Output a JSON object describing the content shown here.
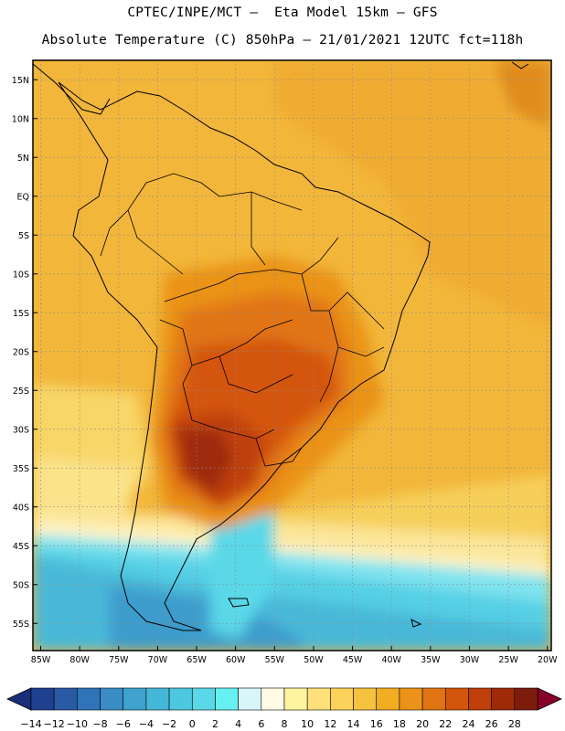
{
  "header": {
    "line1": "CPTEC/INPE/MCT –  Eta Model 15km – GFS",
    "line2": "Absolute Temperature (C) 850hPa – 21/01/2021 12UTC fct=118h"
  },
  "axes": {
    "lat_labels": [
      "15N",
      "10N",
      "5N",
      "EQ",
      "5S",
      "10S",
      "15S",
      "20S",
      "25S",
      "30S",
      "35S",
      "40S",
      "45S",
      "50S",
      "55S"
    ],
    "lat_values": [
      15,
      10,
      5,
      0,
      -5,
      -10,
      -15,
      -20,
      -25,
      -30,
      -35,
      -40,
      -45,
      -50,
      -55
    ],
    "lon_labels": [
      "85W",
      "80W",
      "75W",
      "70W",
      "65W",
      "60W",
      "55W",
      "50W",
      "45W",
      "40W",
      "35W",
      "30W",
      "25W",
      "20W"
    ],
    "lon_values": [
      -85,
      -80,
      -75,
      -70,
      -65,
      -60,
      -55,
      -50,
      -45,
      -40,
      -35,
      -30,
      -25,
      -20
    ],
    "lat_range": [
      -58.5,
      17.5
    ],
    "lon_range": [
      -86,
      -19.5
    ]
  },
  "colorbar": {
    "labels": [
      "-14",
      "-12",
      "-10",
      "-8",
      "-6",
      "-4",
      "-2",
      "0",
      "2",
      "4",
      "6",
      "8",
      "10",
      "12",
      "14",
      "16",
      "18",
      "20",
      "22",
      "24",
      "26",
      "28"
    ],
    "colors": [
      "#1f3f8f",
      "#2a5aa6",
      "#2f74b8",
      "#3a8cc6",
      "#3fa2cf",
      "#44b6d8",
      "#4ec8e0",
      "#5ad8e8",
      "#66f0f2",
      "#d8f6fa",
      "#fffbe6",
      "#fff3a0",
      "#ffe07a",
      "#fbd25a",
      "#f5c240",
      "#f2ae22",
      "#ea9318",
      "#e17412",
      "#d4550c",
      "#bf3f0a",
      "#9f2a08",
      "#7e1c0c"
    ],
    "under_color": "#1a2f7a",
    "over_color": "#86002a"
  },
  "colors": {
    "border": "#000000",
    "grid": "#8a8a8a"
  }
}
